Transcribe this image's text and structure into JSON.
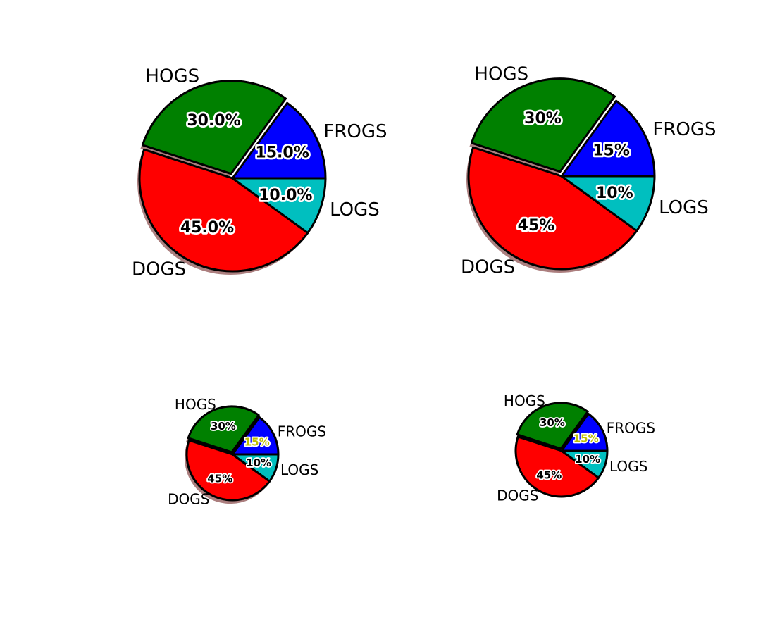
{
  "chart_data": [
    {
      "type": "pie",
      "categories": [
        "Frogs",
        "Hogs",
        "Dogs",
        "Logs"
      ],
      "values": [
        15,
        30,
        45,
        10
      ],
      "colors": [
        "#0000ff",
        "#008000",
        "#ff0000",
        "#00bfbf"
      ],
      "explode": [
        0,
        0.05,
        0,
        0
      ],
      "shadow": true,
      "pct_labels": [
        "15.0%",
        "30.0%",
        "45.0%",
        "10.0%"
      ],
      "pct_label_colors": [
        "#000000",
        "#000000",
        "#000000",
        "#000000"
      ],
      "slice_labels": [
        "FROGS",
        "HOGS",
        "DOGS",
        "LOGS"
      ]
    },
    {
      "type": "pie",
      "categories": [
        "Frogs",
        "Hogs",
        "Dogs",
        "Logs"
      ],
      "values": [
        15,
        30,
        45,
        10
      ],
      "colors": [
        "#0000ff",
        "#008000",
        "#ff0000",
        "#00bfbf"
      ],
      "explode": [
        0,
        0.05,
        0,
        0
      ],
      "shadow": true,
      "pct_labels": [
        "15%",
        "30%",
        "45%",
        "10%"
      ],
      "pct_label_colors": [
        "#000000",
        "#000000",
        "#000000",
        "#000000"
      ],
      "slice_labels": [
        "FROGS",
        "HOGS",
        "DOGS",
        "LOGS"
      ]
    },
    {
      "type": "pie",
      "categories": [
        "Frogs",
        "Hogs",
        "Dogs",
        "Logs"
      ],
      "values": [
        15,
        30,
        45,
        10
      ],
      "colors": [
        "#0000ff",
        "#008000",
        "#ff0000",
        "#00bfbf"
      ],
      "explode": [
        0,
        0.05,
        0,
        0
      ],
      "shadow": true,
      "pct_labels": [
        "15%",
        "30%",
        "45%",
        "10%"
      ],
      "pct_label_colors": [
        "#bfbf00",
        "#000000",
        "#000000",
        "#000000"
      ],
      "slice_labels": [
        "FROGS",
        "HOGS",
        "DOGS",
        "LOGS"
      ]
    },
    {
      "type": "pie",
      "categories": [
        "Frogs",
        "Hogs",
        "Dogs",
        "Logs"
      ],
      "values": [
        15,
        30,
        45,
        10
      ],
      "colors": [
        "#0000ff",
        "#008000",
        "#ff0000",
        "#00bfbf"
      ],
      "explode": [
        0,
        0.05,
        0,
        0
      ],
      "shadow": false,
      "pct_labels": [
        "15%",
        "30%",
        "45%",
        "10%"
      ],
      "pct_label_colors": [
        "#bfbf00",
        "#000000",
        "#000000",
        "#000000"
      ],
      "slice_labels": [
        "FROGS",
        "HOGS",
        "DOGS",
        "LOGS"
      ]
    }
  ]
}
